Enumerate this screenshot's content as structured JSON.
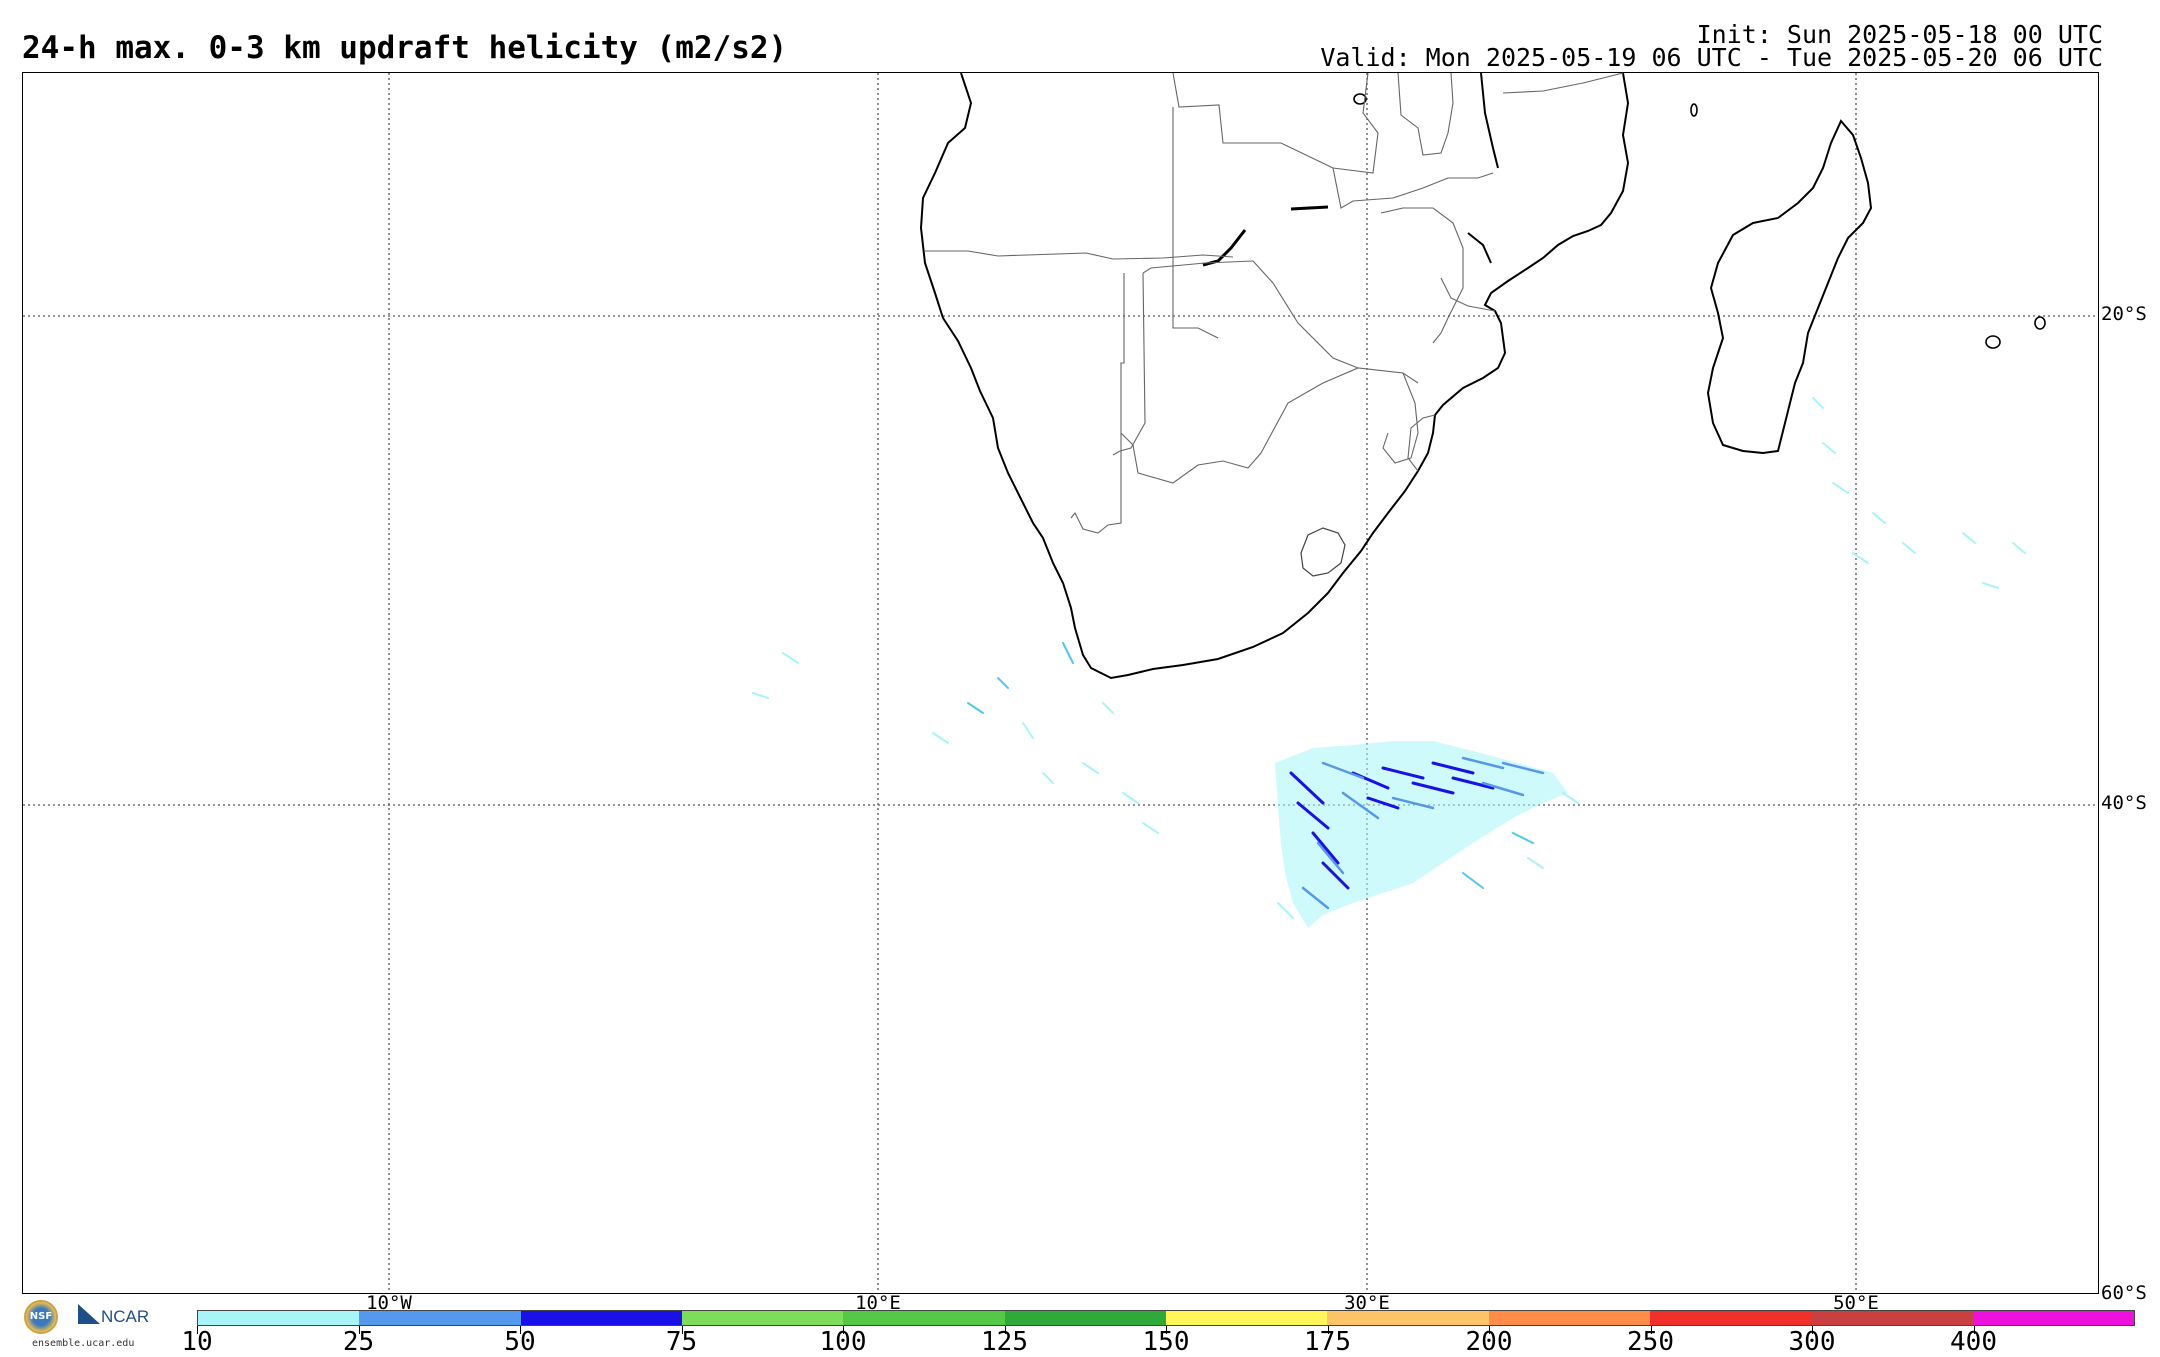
{
  "title": "24-h max. 0-3 km updraft helicity (m2/s2)",
  "init_text": "Init: Sun 2025-05-18 00 UTC",
  "valid_text": "Valid: Mon 2025-05-19 06 UTC - Tue 2025-05-20 06 UTC",
  "lat_labels": [
    "20°S",
    "40°S",
    "60°S"
  ],
  "lon_labels": [
    "10°W",
    "10°E",
    "30°E",
    "50°E"
  ],
  "colorbar": {
    "ticks": [
      "10",
      "25",
      "50",
      "75",
      "100",
      "125",
      "150",
      "175",
      "200",
      "250",
      "300",
      "400"
    ],
    "colors": [
      "#a8f5f8",
      "#5599ee",
      "#1a10e8",
      "#7ddd5a",
      "#55c845",
      "#2faa3a",
      "#fff65a",
      "#ffc468",
      "#ff8c48",
      "#f0302a",
      "#c84040",
      "#ee10dd"
    ]
  },
  "logo": {
    "nsf": "NSF",
    "ncar": "NCAR",
    "site": "ensemble.ucar.edu"
  }
}
